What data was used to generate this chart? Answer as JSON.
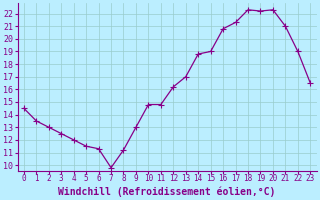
{
  "x": [
    0,
    1,
    2,
    3,
    4,
    5,
    6,
    7,
    8,
    9,
    10,
    11,
    12,
    13,
    14,
    15,
    16,
    17,
    18,
    19,
    20,
    21,
    22,
    23
  ],
  "y": [
    14.5,
    13.5,
    13.0,
    12.5,
    12.0,
    11.5,
    11.3,
    9.8,
    11.2,
    13.0,
    14.8,
    14.8,
    16.2,
    17.0,
    18.8,
    19.0,
    20.8,
    21.3,
    22.3,
    22.2,
    22.3,
    21.0,
    19.0,
    16.5
  ],
  "line_color": "#880088",
  "marker": "+",
  "marker_size": 4,
  "marker_linewidth": 0.8,
  "line_width": 0.9,
  "bg_color": "#bbeeff",
  "grid_color": "#99cccc",
  "xlabel": "Windchill (Refroidissement éolien,°C)",
  "xlabel_fontsize": 7,
  "xtick_labels": [
    "0",
    "1",
    "2",
    "3",
    "4",
    "5",
    "6",
    "7",
    "8",
    "9",
    "10",
    "11",
    "12",
    "13",
    "14",
    "15",
    "16",
    "17",
    "18",
    "19",
    "20",
    "21",
    "22",
    "23"
  ],
  "ylim": [
    9.5,
    22.8
  ],
  "xlim": [
    -0.5,
    23.5
  ],
  "yticks": [
    10,
    11,
    12,
    13,
    14,
    15,
    16,
    17,
    18,
    19,
    20,
    21,
    22
  ],
  "ytick_labels": [
    "10",
    "11",
    "12",
    "13",
    "14",
    "15",
    "16",
    "17",
    "18",
    "19",
    "20",
    "21",
    "22"
  ],
  "text_color": "#880088",
  "axis_color": "#880088",
  "tick_fontsize": 6,
  "xtick_fontsize": 5.5
}
